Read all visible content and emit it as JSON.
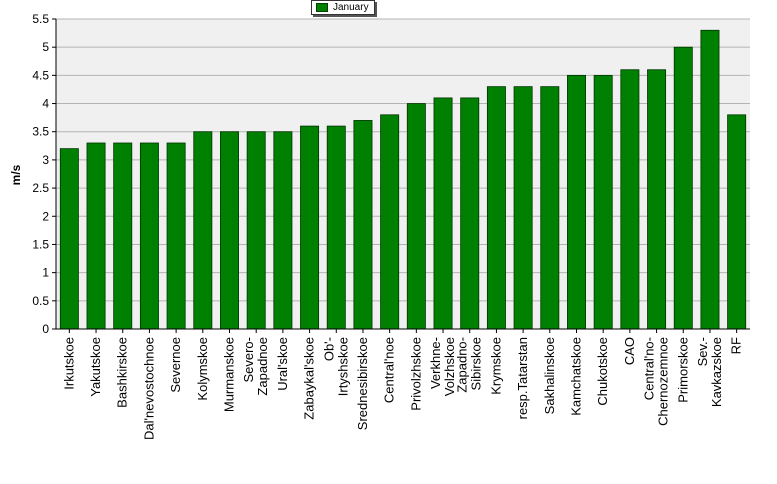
{
  "chart_data": {
    "type": "bar",
    "ylabel": "m/s",
    "ylim": [
      0,
      5.5
    ],
    "yticks": [
      0,
      0.5,
      1,
      1.5,
      2,
      2.5,
      3,
      3.5,
      4,
      4.5,
      5,
      5.5
    ],
    "legend": {
      "placement": "top-center"
    },
    "grid": true,
    "bar_color": "#008000",
    "plot_background": "#f0f0f0",
    "categories": [
      "Irkutskoe",
      "Yakutskoe",
      "Bashkirskoe",
      "Dal'nevostochnoe",
      "Severnoe",
      "Kolymskoe",
      "Murmanskoe",
      "Severo-\nZapadnoe",
      "Ural'skoe",
      "Zabaykal'skoe",
      "Ob'-\nIrtyshskoe",
      "Srednesibirskoe",
      "Central'noe",
      "Privolzhskoe",
      "Verkhne-\nVolzhskoe",
      "Zapadno-\nSibirskoe",
      "Krymskoe",
      "resp.Tatarstan",
      "Sakhalinskoe",
      "Kamchatskoe",
      "Chukotskoe",
      "CAO",
      "Central'no-\nChernozemnoe",
      "Primorskoe",
      "Sev.-\nKavkazskoe",
      "RF"
    ],
    "series": [
      {
        "name": "January",
        "values": [
          3.2,
          3.3,
          3.3,
          3.3,
          3.3,
          3.5,
          3.5,
          3.5,
          3.5,
          3.6,
          3.6,
          3.7,
          3.8,
          4.0,
          4.1,
          4.1,
          4.3,
          4.3,
          4.3,
          4.5,
          4.5,
          4.6,
          4.6,
          5.0,
          5.3,
          3.8
        ]
      }
    ]
  }
}
